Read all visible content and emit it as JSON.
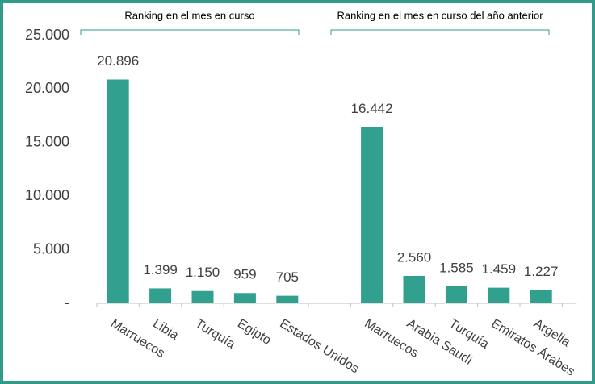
{
  "chart_data": {
    "type": "bar",
    "annotations": [
      "Ranking en el mes en curso",
      "Ranking en el mes en curso del año anterior"
    ],
    "categories": [
      "Marruecos",
      "Libia",
      "Turquía",
      "Egipto",
      "Estados Unidos",
      null,
      "Marruecos",
      "Arabia Saudí",
      "Turquía",
      "Emiratos Árabes",
      "Argelia"
    ],
    "values": [
      20896,
      1399,
      1150,
      959,
      705,
      null,
      16442,
      2560,
      1585,
      1459,
      1227
    ],
    "value_labels": [
      "20.896",
      "1.399",
      "1.150",
      "959",
      "705",
      null,
      "16.442",
      "2.560",
      "1.585",
      "1.459",
      "1.227"
    ],
    "color": "#31a08e",
    "ylim": [
      0,
      25000
    ],
    "yticks": [
      {
        "value": 0,
        "label": "-"
      },
      {
        "value": 5000,
        "label": "5.000"
      },
      {
        "value": 10000,
        "label": "10.000"
      },
      {
        "value": 15000,
        "label": "15.000"
      },
      {
        "value": 20000,
        "label": "20.000"
      },
      {
        "value": 25000,
        "label": "25.000"
      }
    ],
    "grid": false
  }
}
